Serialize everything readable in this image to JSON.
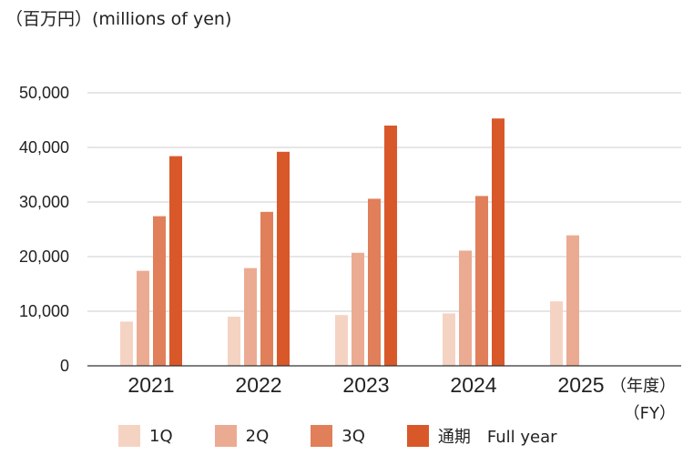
{
  "unit_label": "（百万円）(millions of yen)",
  "fy_label_line1": "（年度）",
  "fy_label_line2": "（FY）",
  "colors": {
    "q1": "#f5d3c3",
    "q2": "#ebab92",
    "q3": "#e07f5a",
    "full": "#d9582a",
    "grid": "#cccccc",
    "axis": "#333333"
  },
  "chart_data": {
    "type": "bar",
    "categories": [
      "2021",
      "2022",
      "2023",
      "2024",
      "2025"
    ],
    "ylim": [
      0,
      50000
    ],
    "yticks": [
      0,
      10000,
      20000,
      30000,
      40000,
      50000
    ],
    "ytick_labels": [
      "0",
      "10,000",
      "20,000",
      "30,000",
      "40,000",
      "50,000"
    ],
    "grid": true,
    "legend_position": "bottom",
    "series": [
      {
        "name": "1Q",
        "color_key": "q1",
        "values": [
          8100,
          9000,
          9300,
          9600,
          11800
        ]
      },
      {
        "name": "2Q",
        "color_key": "q2",
        "values": [
          17400,
          17900,
          20700,
          21100,
          23900
        ]
      },
      {
        "name": "3Q",
        "color_key": "q3",
        "values": [
          27400,
          28200,
          30600,
          31100,
          null
        ]
      },
      {
        "name": "通期　Full year",
        "color_key": "full",
        "values": [
          38400,
          39200,
          44000,
          45300,
          null
        ]
      }
    ]
  }
}
